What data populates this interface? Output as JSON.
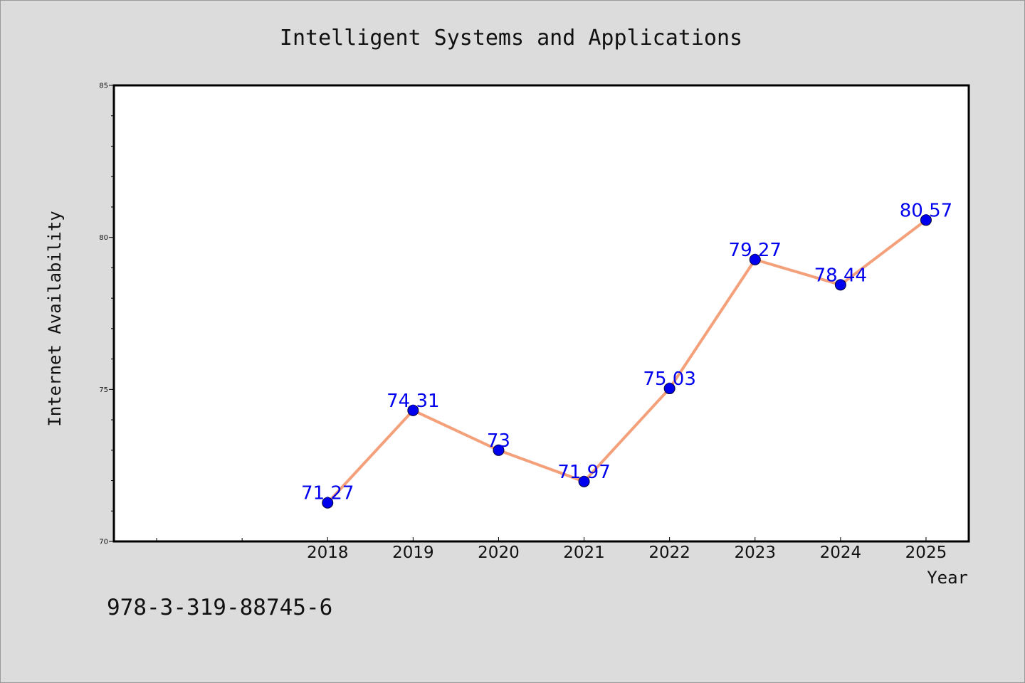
{
  "colors": {
    "background": "#dcdcdc",
    "plot_background": "#ffffff",
    "line": "#f4a07a",
    "marker": "#0000ee",
    "data_label": "#0000ee"
  },
  "footer": {
    "isbn": "978-3-319-88745-6"
  },
  "chart_data": {
    "type": "line",
    "title": "Intelligent Systems and Applications",
    "xlabel": "Year",
    "ylabel": "Internet Availability",
    "categories": [
      "2018",
      "2019",
      "2020",
      "2021",
      "2022",
      "2023",
      "2024",
      "2025"
    ],
    "series": [
      {
        "values": [
          71.27,
          74.31,
          73,
          71.97,
          75.03,
          79.27,
          78.44,
          80.57
        ]
      }
    ],
    "data_labels": [
      "71.27",
      "74.31",
      "73",
      "71.97",
      "75.03",
      "79.27",
      "78.44",
      "80.57"
    ],
    "ylim": [
      70,
      85
    ],
    "yticks": [
      70,
      75,
      80,
      85
    ],
    "xlim_years": [
      2015.5,
      2025.5
    ],
    "grid": false,
    "legend": "none"
  }
}
